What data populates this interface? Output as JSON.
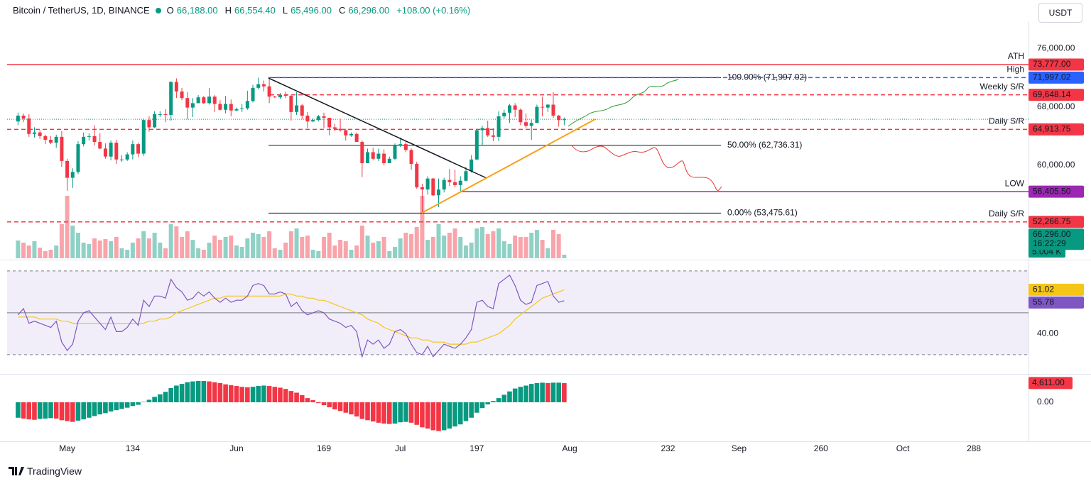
{
  "header": {
    "symbol": "Bitcoin / TetherUS, 1D, BINANCE",
    "open_key": "O",
    "open": "66,188.00",
    "high_key": "H",
    "high": "66,554.40",
    "low_key": "L",
    "low": "65,496.00",
    "close_key": "C",
    "close": "66,296.00",
    "change": "+108.00 (+0.16%)"
  },
  "currency": "USDT",
  "brand": "TradingView",
  "chart_data": [
    {
      "type": "candlestick",
      "x": [
        113,
        114,
        115,
        116,
        117,
        118,
        119,
        120,
        121,
        122,
        123,
        124,
        125,
        126,
        127,
        128,
        129,
        130,
        131,
        132,
        133,
        134,
        135,
        136,
        137,
        138,
        139,
        140,
        141,
        142,
        143,
        144,
        145,
        146,
        147,
        148,
        149,
        150,
        151,
        152,
        153,
        154,
        155,
        156,
        157,
        158,
        159,
        160,
        161,
        162,
        163,
        164,
        165,
        166,
        167,
        168,
        169,
        170,
        171,
        172,
        173,
        174,
        175,
        176,
        177,
        178,
        179,
        180,
        181,
        182,
        183,
        184,
        185,
        186,
        187,
        188,
        189,
        190,
        191,
        192,
        193,
        194,
        195,
        196,
        197,
        198,
        199,
        200,
        201,
        202,
        203,
        204,
        205,
        206,
        207,
        208,
        209,
        210,
        211,
        212,
        213
      ],
      "open": [
        66000,
        66800,
        66400,
        64300,
        64500,
        64000,
        63500,
        63100,
        63900,
        60600,
        58300,
        59100,
        62900,
        63900,
        64000,
        63200,
        62300,
        61200,
        63100,
        60800,
        60800,
        61500,
        62900,
        61600,
        66200,
        65200,
        67000,
        67000,
        66900,
        71400,
        70100,
        69200,
        67900,
        68500,
        69300,
        68500,
        69400,
        68400,
        67600,
        68400,
        67500,
        67700,
        67800,
        68800,
        70600,
        71100,
        70800,
        69400,
        69300,
        69600,
        69500,
        67300,
        68200,
        66800,
        66000,
        66200,
        66700,
        66500,
        65200,
        65000,
        64800,
        64100,
        64300,
        63200,
        60300,
        61800,
        60900,
        61600,
        60300,
        60900,
        62700,
        62900,
        62100,
        60200,
        57000,
        56700,
        58200,
        55900,
        56700,
        58000,
        57700,
        57300,
        57900,
        59200,
        60800,
        64800,
        65100,
        64100,
        63900,
        66700,
        67200,
        68200,
        67600,
        65900,
        65400,
        65800,
        68000,
        67900,
        68300,
        66800,
        66188
      ],
      "high": [
        67200,
        67100,
        67000,
        65200,
        64800,
        64200,
        64000,
        64200,
        64700,
        60900,
        59600,
        63300,
        64500,
        64400,
        65500,
        64400,
        63000,
        63400,
        63500,
        61400,
        61800,
        63400,
        63100,
        66400,
        66700,
        67400,
        67400,
        67700,
        71500,
        71900,
        70600,
        70000,
        69200,
        69600,
        69500,
        70600,
        69600,
        68900,
        69500,
        69000,
        67900,
        68400,
        70200,
        71000,
        71997,
        71600,
        71900,
        69500,
        69900,
        70100,
        69600,
        70000,
        68400,
        67300,
        66400,
        66900,
        67200,
        66500,
        65700,
        66400,
        65000,
        64500,
        64500,
        63400,
        62300,
        62400,
        62300,
        62200,
        61200,
        63000,
        63800,
        63300,
        62300,
        60500,
        57500,
        58500,
        58300,
        58200,
        58300,
        59500,
        59400,
        58500,
        59800,
        61400,
        64900,
        65400,
        66100,
        65100,
        67400,
        67600,
        68400,
        68500,
        67800,
        67100,
        66200,
        68300,
        69400,
        68400,
        70000,
        66900,
        66554.4
      ],
      "low": [
        65500,
        65900,
        63900,
        63800,
        63600,
        62900,
        62900,
        62400,
        59800,
        56500,
        56900,
        58800,
        62600,
        63400,
        62700,
        62200,
        60900,
        60700,
        60200,
        60500,
        60600,
        60800,
        61100,
        61300,
        64600,
        65100,
        66600,
        65900,
        66100,
        69200,
        68900,
        66300,
        66600,
        68500,
        68400,
        68300,
        67300,
        67500,
        67100,
        66700,
        67400,
        67300,
        67600,
        68600,
        70400,
        70100,
        68500,
        69200,
        69100,
        69200,
        66100,
        66900,
        66300,
        65100,
        65900,
        66000,
        65100,
        64100,
        64700,
        64600,
        63400,
        63900,
        63200,
        58400,
        60300,
        60700,
        60600,
        60000,
        60300,
        60700,
        62500,
        61800,
        59400,
        56800,
        53485,
        56000,
        55800,
        54300,
        56300,
        57200,
        57000,
        56500,
        57800,
        59000,
        60700,
        62700,
        63900,
        63300,
        63300,
        66400,
        65800,
        66600,
        65500,
        65100,
        63500,
        65800,
        66700,
        67300,
        66500,
        65300,
        65496
      ],
      "close": [
        66800,
        66400,
        64300,
        64500,
        64000,
        63500,
        63100,
        63900,
        60600,
        58300,
        59100,
        62900,
        63900,
        64000,
        63200,
        62300,
        61200,
        63100,
        60800,
        60800,
        61500,
        62900,
        61600,
        66200,
        65200,
        67000,
        67000,
        66900,
        71400,
        70100,
        69200,
        67900,
        68500,
        69300,
        68500,
        69400,
        68400,
        67600,
        68400,
        67500,
        67700,
        67800,
        68800,
        70600,
        71100,
        70800,
        69400,
        69300,
        69600,
        69500,
        67300,
        68200,
        66800,
        66000,
        66200,
        66700,
        66500,
        65200,
        65000,
        64800,
        64100,
        64300,
        63200,
        60300,
        61800,
        60900,
        61600,
        60300,
        60900,
        62700,
        62900,
        62100,
        60200,
        57000,
        56700,
        58200,
        55900,
        56700,
        58000,
        57700,
        57300,
        57900,
        59200,
        60800,
        64800,
        65100,
        64100,
        63900,
        66700,
        67200,
        68200,
        67600,
        65900,
        65400,
        65800,
        68000,
        67900,
        68300,
        66800,
        66188,
        66296
      ],
      "volume": [
        25,
        22,
        18,
        24,
        15,
        10,
        12,
        18,
        48,
        88,
        46,
        36,
        22,
        20,
        28,
        25,
        27,
        24,
        30,
        14,
        12,
        22,
        28,
        38,
        28,
        36,
        22,
        14,
        48,
        45,
        30,
        38,
        26,
        14,
        12,
        22,
        32,
        26,
        30,
        32,
        18,
        16,
        28,
        36,
        34,
        30,
        38,
        14,
        12,
        22,
        38,
        42,
        30,
        32,
        12,
        10,
        30,
        36,
        18,
        26,
        24,
        12,
        18,
        46,
        32,
        22,
        24,
        30,
        10,
        16,
        28,
        36,
        34,
        44,
        88,
        26,
        30,
        48,
        32,
        36,
        42,
        30,
        18,
        22,
        42,
        44,
        34,
        38,
        42,
        24,
        20,
        32,
        30,
        30,
        36,
        40,
        26,
        14,
        40,
        34,
        5.004
      ],
      "volume_label": "5.004 K",
      "last_price_label": "66,296.00",
      "countdown": "16:22:29",
      "up_color": "#089981",
      "down_color": "#f23645",
      "xlim": [
        111,
        298
      ],
      "xticks": [
        {
          "value": 122,
          "label": "May"
        },
        134,
        {
          "value": 153,
          "label": "Jun"
        },
        169,
        {
          "value": 183,
          "label": "Jul"
        },
        197,
        {
          "value": 214,
          "label": "Aug"
        },
        232,
        {
          "value": 245,
          "label": "Sep"
        },
        260,
        {
          "value": 275,
          "label": "Oct"
        },
        288
      ],
      "ylim": [
        47200,
        79700
      ],
      "yticks": [
        {
          "value": 60000,
          "label": "60,000.00"
        },
        {
          "value": 68000,
          "label": "68,000.00"
        },
        {
          "value": 76000,
          "label": "76,000.00"
        }
      ],
      "levels": [
        {
          "name": "ATH",
          "value": 73777,
          "label": "73,777.00",
          "color": "#f23645",
          "name_color": "#4caf50",
          "dash": "solid"
        },
        {
          "name": "High",
          "value": 71997.02,
          "label": "71,997.02",
          "color": "#2962ff",
          "name_color": "#2962ff",
          "dash": "dashed"
        },
        {
          "name": "Weekly S/R",
          "value": 69648.14,
          "label": "69,648.14",
          "color": "#f23645",
          "name_color": "#f23645",
          "dash": "dashed"
        },
        {
          "name": "Daily S/R",
          "value": 64913.75,
          "label": "64,913.75",
          "color": "#f23645",
          "name_color": "#f23645",
          "dash": "dashed"
        },
        {
          "name": "LOW",
          "value": 56405.5,
          "label": "56,405.50",
          "color": "#9c27b0",
          "name_color": "#9c27b0",
          "dash": "solid"
        },
        {
          "name": "Daily S/R",
          "value": 52266.75,
          "label": "52,266.75",
          "color": "#f23645",
          "name_color": "#f23645",
          "dash": "dashed"
        }
      ],
      "fib": [
        {
          "value": 71997.02,
          "label": "100.00% (71,997.02)"
        },
        {
          "value": 62736.31,
          "label": "50.00% (62,736.31)"
        },
        {
          "value": 53475.61,
          "label": "0.00% (53,475.61)"
        }
      ]
    },
    {
      "type": "line",
      "series": [
        {
          "color": "#7e57c2",
          "values": [
            49,
            52,
            45,
            46,
            45,
            44,
            43,
            46,
            36,
            32,
            35,
            46,
            50,
            51,
            48,
            45,
            42,
            48,
            41,
            41,
            43,
            47,
            44,
            56,
            53,
            58,
            58,
            57,
            66,
            62,
            60,
            56,
            57,
            60,
            58,
            60,
            57,
            55,
            57,
            55,
            56,
            56,
            58,
            63,
            64,
            63,
            59,
            59,
            60,
            59,
            53,
            55,
            51,
            49,
            50,
            51,
            50,
            47,
            46,
            45,
            43,
            44,
            41,
            29,
            37,
            35,
            37,
            33,
            35,
            41,
            42,
            40,
            35,
            31,
            30,
            34,
            29,
            32,
            35,
            34,
            33,
            35,
            38,
            42,
            55,
            56,
            53,
            52,
            64,
            66,
            68,
            63,
            56,
            54,
            55,
            63,
            64,
            65,
            58,
            55,
            55.78
          ]
        },
        {
          "color": "#f5c518",
          "values": [
            48,
            48,
            48,
            48,
            47,
            47,
            47,
            47,
            46,
            46,
            45,
            45,
            45,
            45,
            45,
            45,
            45,
            45,
            45,
            45,
            45,
            45,
            45,
            45,
            46,
            46,
            47,
            47,
            48,
            50,
            51,
            52,
            53,
            54,
            55,
            56,
            57,
            57,
            58,
            58,
            58,
            58,
            58,
            58,
            58,
            58,
            58,
            58,
            58,
            59,
            59,
            58,
            58,
            57,
            57,
            56,
            56,
            55,
            54,
            53,
            52,
            51,
            50,
            49,
            47,
            46,
            45,
            43,
            42,
            41,
            40,
            39,
            38,
            38,
            37,
            37,
            36,
            36,
            36,
            35,
            35,
            35,
            35,
            36,
            36,
            37,
            38,
            39,
            40,
            42,
            44,
            47,
            49,
            51,
            53,
            55,
            57,
            58,
            59,
            60,
            61,
            61.02
          ]
        }
      ],
      "levels": [
        70,
        50,
        30
      ],
      "ylim": [
        20.8,
        74.7
      ],
      "yticks": [
        {
          "value": 40,
          "label": "40.00"
        }
      ]
    },
    {
      "type": "histogram",
      "values": [
        -3700,
        -3900,
        -4100,
        -4200,
        -4000,
        -3900,
        -3800,
        -3900,
        -4300,
        -4500,
        -4700,
        -4400,
        -4100,
        -3700,
        -3300,
        -2900,
        -2600,
        -2200,
        -1900,
        -1600,
        -1300,
        -900,
        -600,
        100,
        600,
        1300,
        1900,
        2500,
        3400,
        4000,
        4400,
        4800,
        5000,
        5100,
        5100,
        5000,
        4800,
        4600,
        4300,
        4100,
        3900,
        3700,
        3600,
        3700,
        3900,
        4000,
        3900,
        3700,
        3500,
        3200,
        2700,
        2300,
        1700,
        1000,
        500,
        -200,
        -700,
        -1200,
        -1700,
        -2100,
        -2500,
        -2900,
        -3400,
        -4000,
        -4300,
        -4600,
        -4900,
        -5100,
        -5200,
        -5100,
        -4800,
        -4700,
        -4900,
        -5400,
        -6000,
        -6300,
        -6700,
        -6900,
        -6700,
        -6300,
        -5800,
        -5300,
        -4500,
        -3700,
        -2500,
        -1400,
        -500,
        300,
        1000,
        1800,
        2600,
        3300,
        3700,
        4000,
        4400,
        4600,
        4700,
        4600,
        4700,
        4700,
        4611
      ],
      "last_value_label": "4,611.00",
      "up_color": "#089981",
      "down_color": "#f23645",
      "ylim": [
        -9350,
        6630
      ],
      "yticks": [
        {
          "value": 0,
          "label": "0.00"
        }
      ]
    }
  ]
}
